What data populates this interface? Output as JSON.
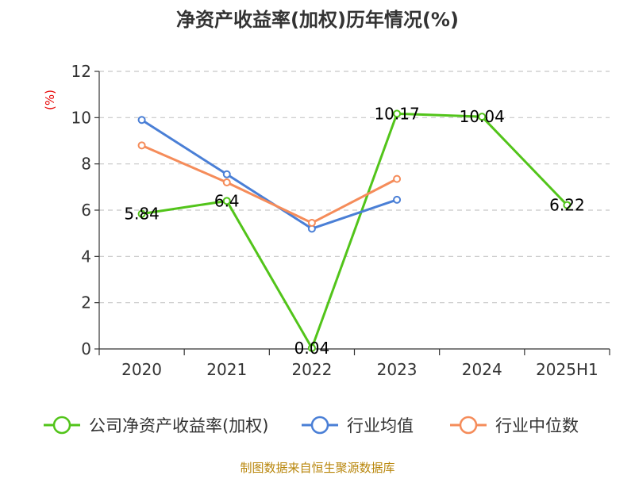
{
  "chart_data": {
    "type": "line",
    "title": "净资产收益率(加权)历年情况(%)",
    "ylabel": "(%)",
    "xlabel": "",
    "categories": [
      "2020",
      "2021",
      "2022",
      "2023",
      "2024",
      "2025H1"
    ],
    "ylim": [
      0,
      12
    ],
    "yticks": [
      0,
      2,
      4,
      6,
      8,
      10,
      12
    ],
    "grid": true,
    "legend_position": "bottom",
    "series": [
      {
        "name": "公司净资产收益率(加权)",
        "color": "#52c41a",
        "values": [
          5.84,
          6.4,
          0.04,
          10.17,
          10.04,
          6.22
        ],
        "labels": [
          "5.84",
          "6.4",
          "0.04",
          "10.17",
          "10.04",
          "6.22"
        ]
      },
      {
        "name": "行业均值",
        "color": "#4a7fd6",
        "values": [
          9.9,
          7.55,
          5.2,
          6.45,
          null,
          null
        ]
      },
      {
        "name": "行业中位数",
        "color": "#f58c5a",
        "values": [
          8.8,
          7.2,
          5.45,
          7.35,
          null,
          null
        ]
      }
    ],
    "source": "制图数据来自恒生聚源数据库"
  }
}
